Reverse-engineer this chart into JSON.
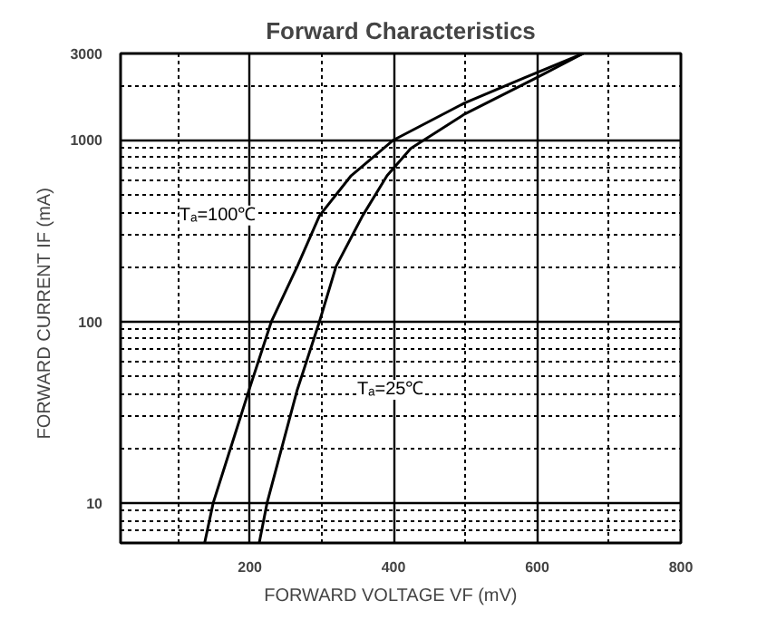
{
  "chart_data": {
    "type": "line",
    "title": "Forward Characteristics",
    "xlabel": "FORWARD VOLTAGE   VF   (mV)",
    "ylabel": "FORWARD CURRENT    IF    (mA)",
    "log": "y",
    "grid": true,
    "marker": "none",
    "line_style": "solid",
    "xlim": [
      20,
      800
    ],
    "ylim": [
      6,
      3000
    ],
    "xticks": [
      {
        "value": 100,
        "label": null
      },
      200,
      {
        "value": 300,
        "label": null
      },
      400,
      {
        "value": 500,
        "label": null
      },
      600,
      {
        "value": 700,
        "label": null
      },
      800
    ],
    "yticks": [
      {
        "value": 7,
        "label": null
      },
      {
        "value": 8,
        "label": null
      },
      {
        "value": 9,
        "label": null
      },
      10,
      {
        "value": 20,
        "label": null
      },
      {
        "value": 30,
        "label": null
      },
      {
        "value": 40,
        "label": null
      },
      {
        "value": 50,
        "label": null
      },
      {
        "value": 60,
        "label": null
      },
      {
        "value": 70,
        "label": null
      },
      {
        "value": 80,
        "label": null
      },
      {
        "value": 90,
        "label": null
      },
      100,
      {
        "value": 200,
        "label": null
      },
      {
        "value": 300,
        "label": null
      },
      {
        "value": 400,
        "label": null
      },
      {
        "value": 500,
        "label": null
      },
      {
        "value": 600,
        "label": null
      },
      {
        "value": 700,
        "label": null
      },
      {
        "value": 800,
        "label": null
      },
      {
        "value": 900,
        "label": null
      },
      1000,
      {
        "value": 2000,
        "label": null
      },
      3000
    ],
    "series": [
      {
        "name": "Tₐ=100℃",
        "color": "#000000",
        "x": [
          137,
          149,
          199,
          230,
          266,
          297,
          341,
          400,
          499,
          582,
          664
        ],
        "values": [
          6,
          10,
          42,
          100,
          201,
          383,
          636,
          1000,
          1600,
          2200,
          3000
        ]
      },
      {
        "name": "Tₐ=25℃",
        "color": "#000000",
        "x": [
          213,
          224,
          266,
          297,
          320,
          357,
          391,
          424,
          499,
          600,
          664
        ],
        "values": [
          6,
          10,
          42,
          100,
          201,
          383,
          636,
          898,
          1390,
          2215,
          3000
        ]
      }
    ]
  }
}
